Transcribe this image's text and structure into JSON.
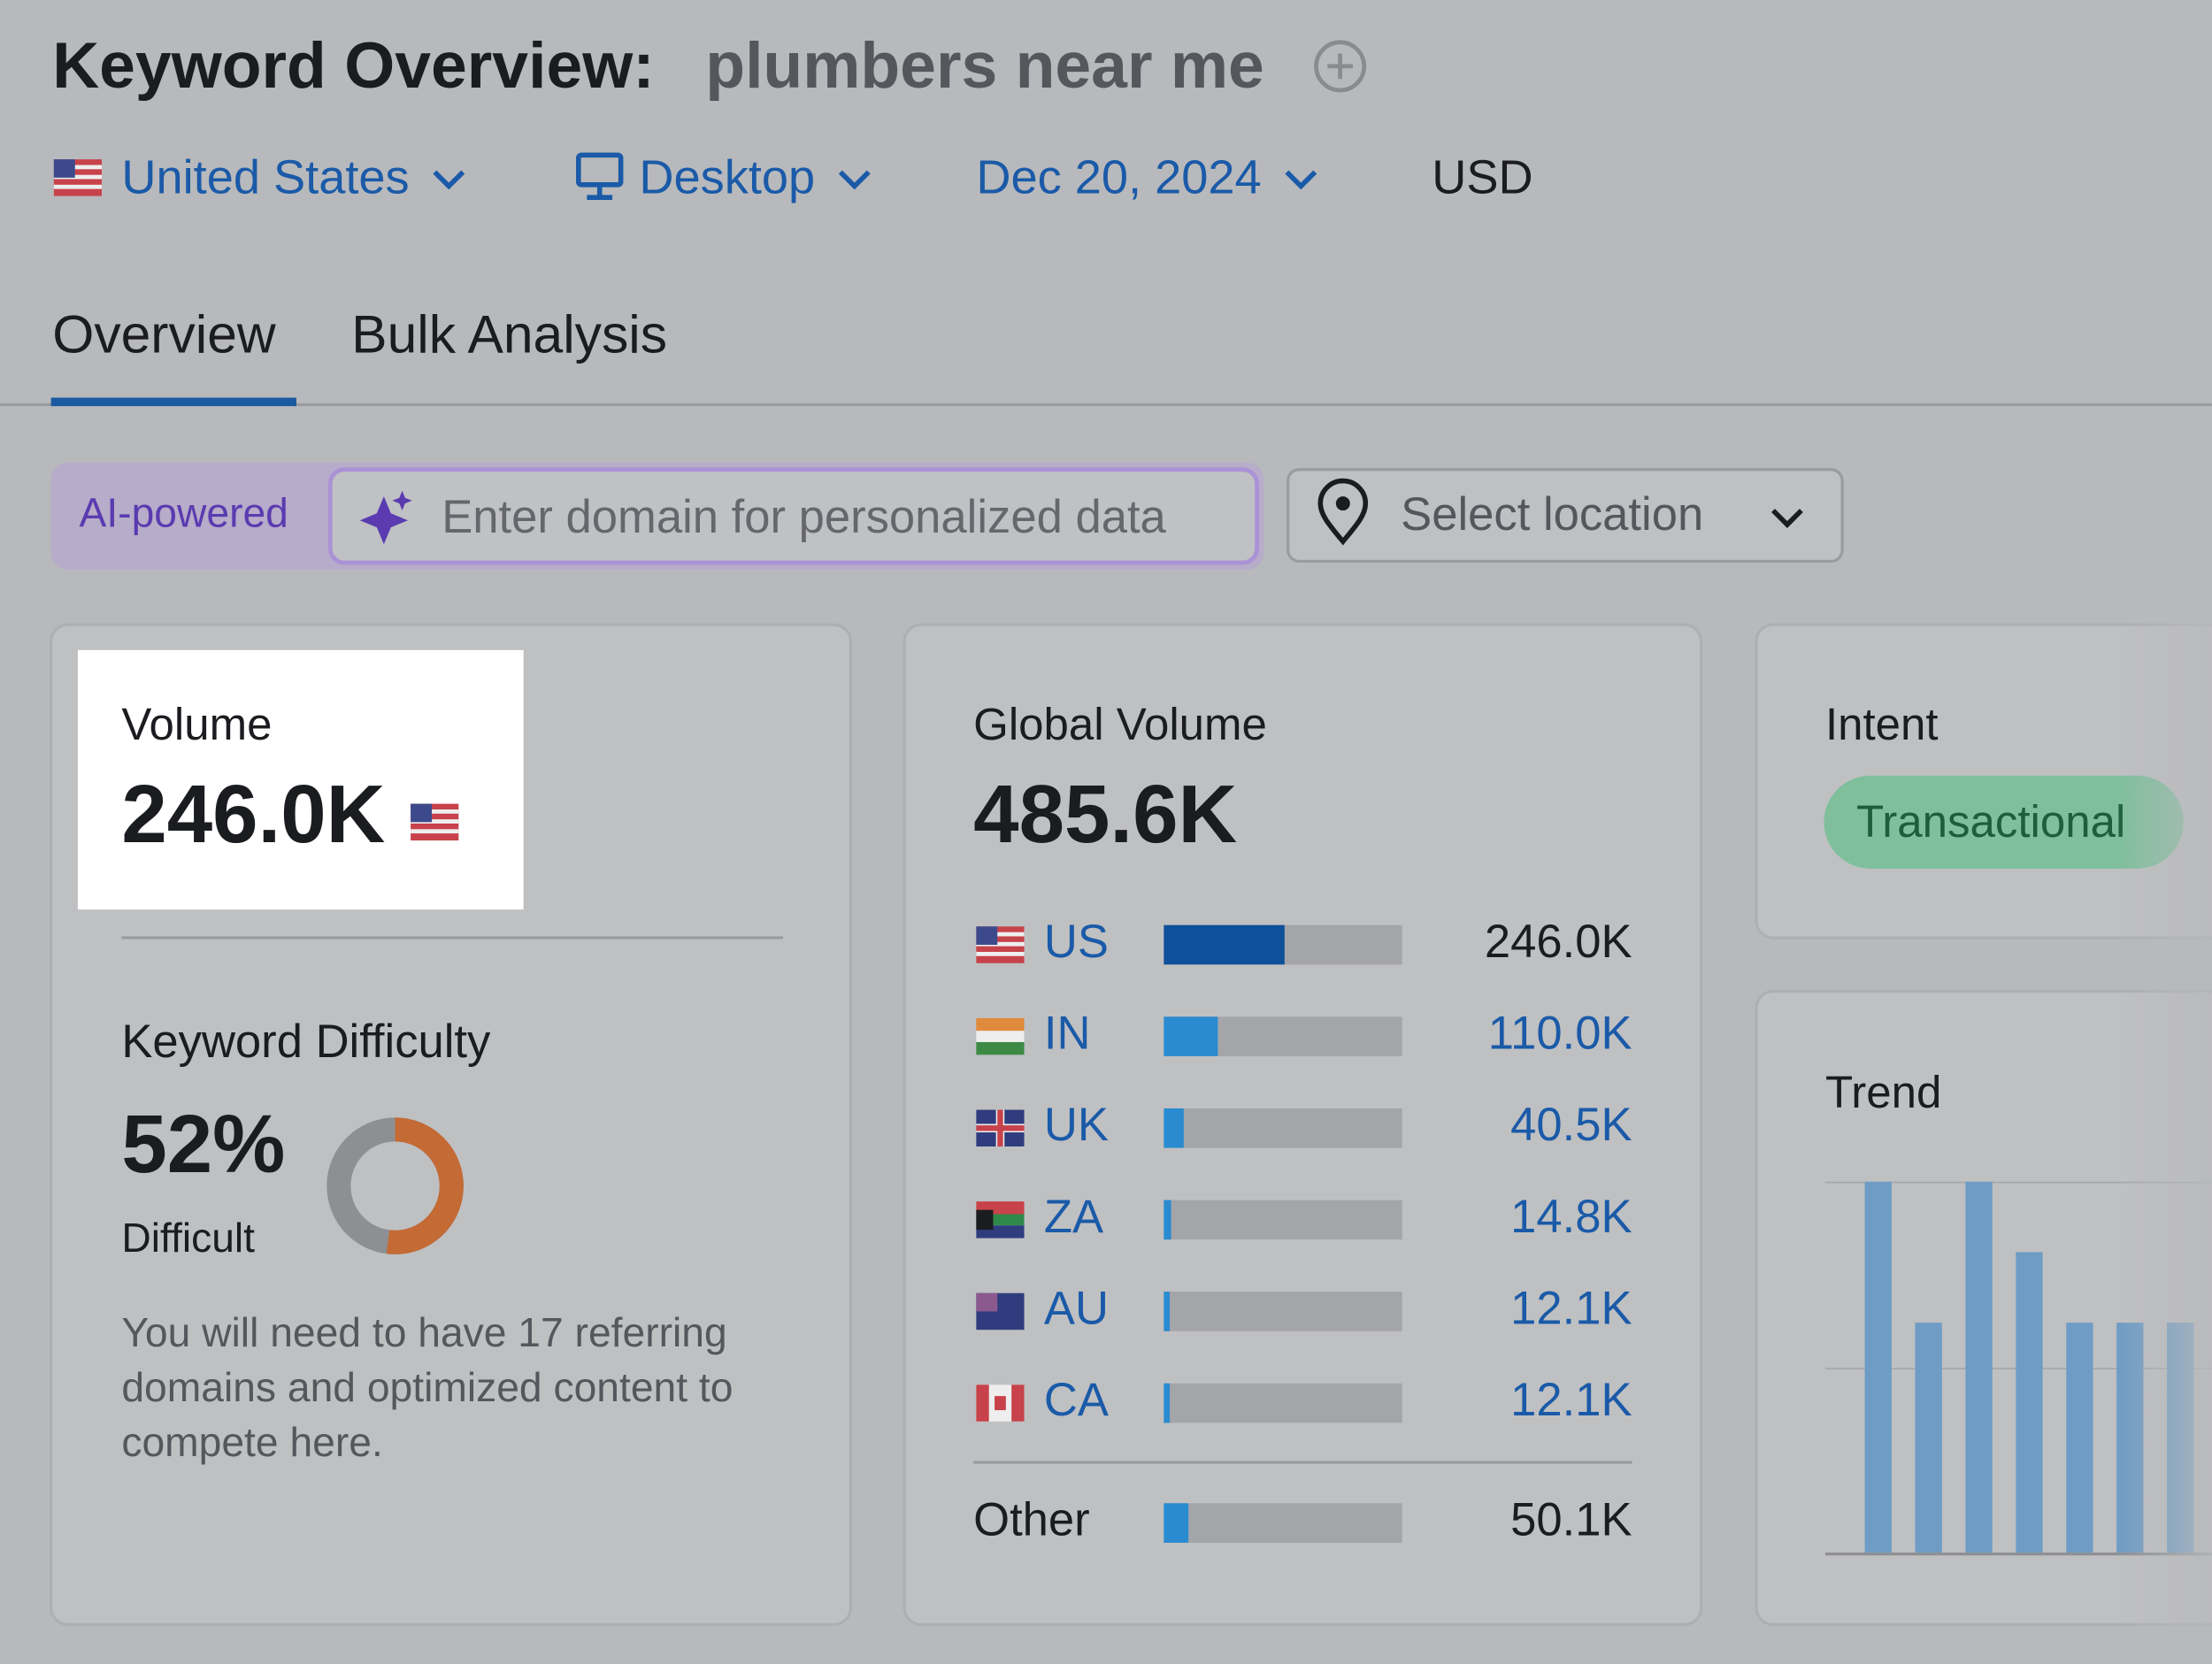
{
  "header": {
    "title": "Keyword Overview:",
    "keyword": "plumbers near me"
  },
  "filters": {
    "country": "United States",
    "device": "Desktop",
    "date": "Dec 20, 2024",
    "currency": "USD"
  },
  "tabs": [
    "Overview",
    "Bulk Analysis"
  ],
  "search": {
    "badge": "AI-powered",
    "placeholder": "Enter domain for personalized data",
    "location": "Select location"
  },
  "volume": {
    "title": "Volume",
    "label": "246.0K"
  },
  "difficulty": {
    "title": "Keyword Difficulty",
    "value": 52,
    "label": "52%",
    "level": "Difficult",
    "note": [
      "You will need to have 17 referring",
      "domains and optimized content to",
      "compete here."
    ]
  },
  "global_volume": {
    "title": "Global Volume",
    "value": 485600,
    "label": "485.6K",
    "countries": [
      {
        "code": "US",
        "value": 246000,
        "label": "246.0K"
      },
      {
        "code": "IN",
        "value": 110000,
        "label": "110.0K"
      },
      {
        "code": "UK",
        "value": 40500,
        "label": "40.5K"
      },
      {
        "code": "ZA",
        "value": 14800,
        "label": "14.8K"
      },
      {
        "code": "AU",
        "value": 12100,
        "label": "12.1K"
      },
      {
        "code": "CA",
        "value": 12100,
        "label": "12.1K"
      }
    ],
    "other": {
      "name": "Other",
      "value": 50100,
      "label": "50.1K"
    }
  },
  "intent": {
    "title": "Intent",
    "value": "Transactional"
  },
  "trend": {
    "title": "Trend",
    "values": [
      100,
      62,
      100,
      81,
      62,
      62,
      62
    ]
  }
}
